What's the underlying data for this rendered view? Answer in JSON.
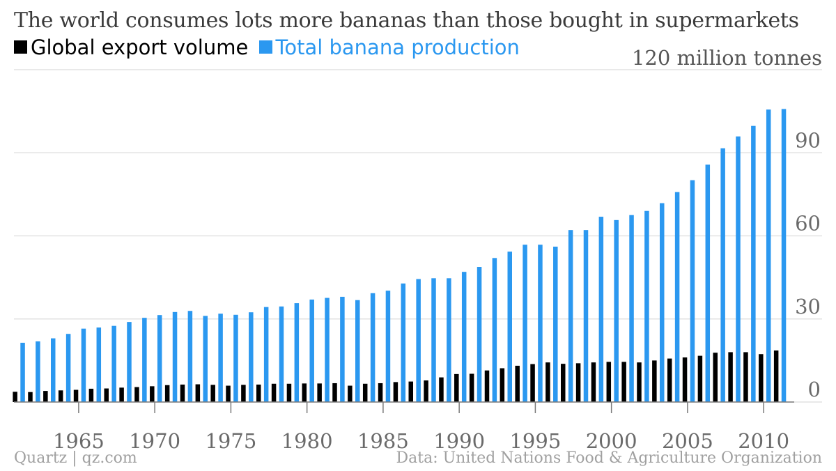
{
  "title": "The world consumes lots more bananas than those bought in supermarkets",
  "legend": [
    {
      "label": "Global export volume",
      "color": "#000000"
    },
    {
      "label": "Total banana production",
      "color": "#2b98f0"
    }
  ],
  "unit_label": "120 million tonnes",
  "footer": {
    "left": "Quartz | qz.com",
    "right": "Data: United Nations Food & Agriculture Organization"
  },
  "chart_data": {
    "type": "bar",
    "x": [
      1961,
      1962,
      1963,
      1964,
      1965,
      1966,
      1967,
      1968,
      1969,
      1970,
      1971,
      1972,
      1973,
      1974,
      1975,
      1976,
      1977,
      1978,
      1979,
      1980,
      1981,
      1982,
      1983,
      1984,
      1985,
      1986,
      1987,
      1988,
      1989,
      1990,
      1991,
      1992,
      1993,
      1994,
      1995,
      1996,
      1997,
      1998,
      1999,
      2000,
      2001,
      2002,
      2003,
      2004,
      2005,
      2006,
      2007,
      2008,
      2009,
      2010,
      2011
    ],
    "x_tick_labels": [
      "1965",
      "1970",
      "1975",
      "1980",
      "1985",
      "1990",
      "1995",
      "2000",
      "2005",
      "2010"
    ],
    "series": [
      {
        "name": "Global export volume",
        "color": "#000000",
        "values": [
          3.7,
          3.6,
          4.0,
          4.2,
          4.4,
          4.8,
          4.9,
          5.2,
          5.4,
          5.7,
          6.1,
          6.3,
          6.4,
          6.2,
          5.9,
          6.2,
          6.3,
          6.6,
          6.6,
          6.7,
          6.7,
          6.8,
          5.9,
          6.6,
          6.8,
          7.2,
          7.4,
          7.8,
          8.9,
          10.1,
          10.2,
          11.4,
          12.2,
          13.1,
          13.7,
          14.3,
          13.8,
          14.0,
          14.3,
          14.5,
          14.5,
          14.3,
          15.0,
          15.7,
          16.1,
          16.7,
          17.8,
          18.0,
          18.0,
          17.3,
          18.6
        ]
      },
      {
        "name": "Total banana production",
        "color": "#2b98f0",
        "values": [
          21.4,
          21.9,
          23.0,
          24.6,
          26.5,
          26.9,
          27.5,
          28.9,
          30.4,
          31.4,
          32.5,
          32.9,
          31.1,
          31.9,
          31.5,
          32.4,
          34.3,
          34.5,
          35.7,
          37.0,
          37.6,
          38.0,
          36.8,
          39.3,
          40.2,
          42.8,
          44.4,
          44.7,
          44.7,
          47.0,
          48.8,
          52.0,
          54.3,
          56.8,
          56.8,
          56.1,
          62.1,
          62.1,
          66.9,
          65.7,
          67.5,
          69.0,
          71.8,
          75.8,
          80.1,
          85.7,
          91.6,
          95.9,
          99.7,
          105.6,
          105.8
        ]
      }
    ],
    "ylim": [
      0,
      120
    ],
    "y_ticks": [
      0,
      30,
      60,
      90
    ],
    "grid": true,
    "y_axis_position": "right",
    "legend_position": "top-left"
  }
}
